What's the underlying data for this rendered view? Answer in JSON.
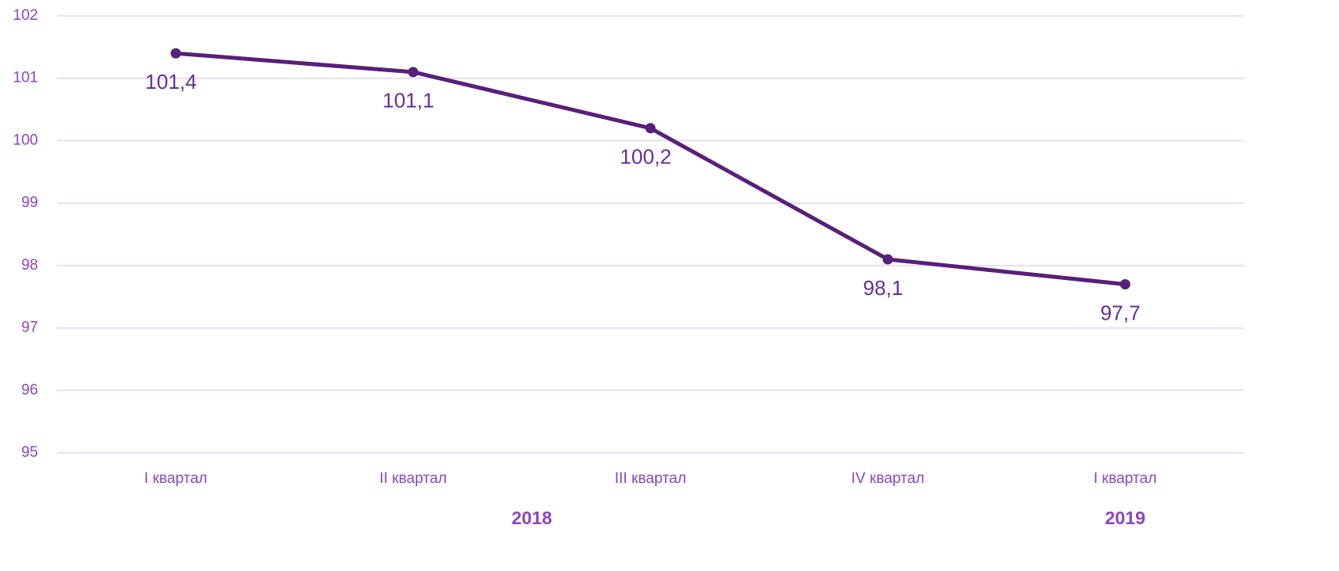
{
  "chart_data": {
    "type": "line",
    "categories": [
      "I квартал",
      "II квартал",
      "III квартал",
      "IV квартал",
      "I квартал"
    ],
    "year_groups": [
      {
        "label": "2018",
        "categories": 4
      },
      {
        "label": "2019",
        "categories": 1
      }
    ],
    "series": [
      {
        "color": "#57207a",
        "values": [
          101.4,
          101.1,
          100.2,
          98.1,
          97.7
        ],
        "value_labels": [
          "101,4",
          "101,1",
          "100,2",
          "98,1",
          "97,7"
        ]
      }
    ],
    "ylim": [
      95,
      102
    ],
    "yticks": [
      95,
      96,
      97,
      98,
      99,
      100,
      101,
      102
    ],
    "grid": true
  }
}
